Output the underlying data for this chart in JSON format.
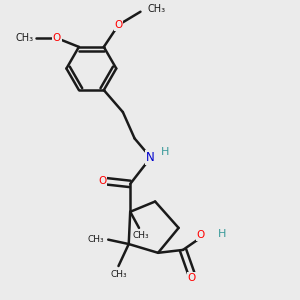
{
  "background_color": "#ebebeb",
  "bond_color": "#1a1a1a",
  "oxygen_color": "#ff0000",
  "nitrogen_color": "#0000cc",
  "hydrogen_color": "#3a9a9a",
  "bond_width": 1.8,
  "figsize": [
    3.0,
    3.0
  ],
  "dpi": 100,
  "xlim": [
    0,
    10
  ],
  "ylim": [
    0,
    10
  ]
}
